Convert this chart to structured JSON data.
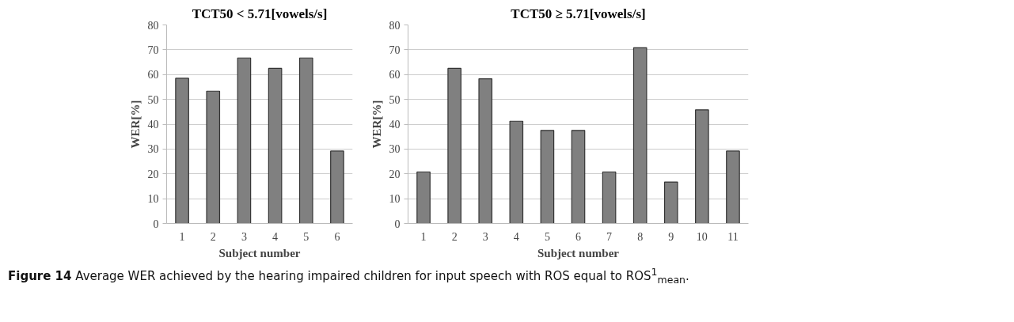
{
  "chart_data": [
    {
      "type": "bar",
      "title": "TCT50 < 5.71[vowels/s]",
      "xlabel": "Subject number",
      "ylabel": "WER[%]",
      "categories": [
        "1",
        "2",
        "3",
        "4",
        "5",
        "6"
      ],
      "values": [
        58.5,
        53.3,
        66.7,
        62.5,
        66.7,
        29.2
      ],
      "color": "#808080",
      "ylim": [
        0,
        80
      ],
      "yticks": [
        0,
        10,
        20,
        30,
        40,
        50,
        60,
        70,
        80
      ],
      "grid": "y"
    },
    {
      "type": "bar",
      "title": "TCT50 ≥ 5.71[vowels/s]",
      "xlabel": "Subject number",
      "ylabel": "WER[%]",
      "categories": [
        "1",
        "2",
        "3",
        "4",
        "5",
        "6",
        "7",
        "8",
        "9",
        "10",
        "11"
      ],
      "values": [
        20.8,
        62.5,
        58.3,
        41.2,
        37.5,
        37.5,
        20.8,
        70.8,
        16.7,
        45.8,
        29.2
      ],
      "color": "#808080",
      "ylim": [
        0,
        80
      ],
      "yticks": [
        0,
        10,
        20,
        30,
        40,
        50,
        60,
        70,
        80
      ],
      "grid": "y",
      "annotations": [
        "Figure 14 Average WER achieved by the hearing impaired children for input speech with ROS equal to ROS$^{1}$$_{mean}$."
      ]
    }
  ]
}
